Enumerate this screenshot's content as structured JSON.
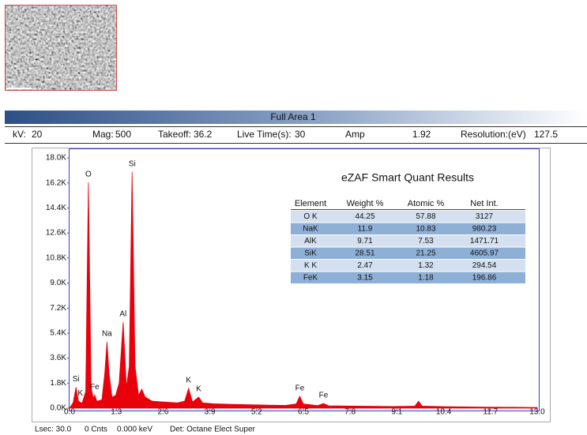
{
  "header": {
    "title": "Full Area 1",
    "info": [
      [
        "kV:",
        "20"
      ],
      [
        "Mag:",
        "500"
      ],
      [
        "Takeoff:",
        "36.2"
      ],
      [
        "Live Time(s):",
        "30"
      ],
      [
        "Amp",
        "1.92"
      ],
      [
        "Resolution:(eV)",
        "127.5"
      ]
    ]
  },
  "table": {
    "title": "eZAF Smart Quant Results",
    "columns": [
      "Element",
      "Weight %",
      "Atomic %",
      "Net Int."
    ],
    "rows": [
      [
        "O K",
        "44.25",
        "57.88",
        "3127"
      ],
      [
        "NaK",
        "11.9",
        "10.83",
        "980.23"
      ],
      [
        "AlK",
        "9.71",
        "7.53",
        "1471.71"
      ],
      [
        "SiK",
        "28.51",
        "21.25",
        "4605.97"
      ],
      [
        "K K",
        "2.47",
        "1.32",
        "294.54"
      ],
      [
        "FeK",
        "3.15",
        "1.18",
        "196.86"
      ]
    ]
  },
  "footer": [
    "Lsec: 30.0",
    "0 Cnts",
    "0.000 keV",
    "Det: Octane Elect Super"
  ],
  "chart_data": {
    "type": "area",
    "color": "#e8000b",
    "x": [
      0,
      0.1,
      0.18,
      0.25,
      0.35,
      0.45,
      0.525,
      0.6,
      0.66,
      0.7,
      0.76,
      0.9,
      0.98,
      1.04,
      1.1,
      1.18,
      1.28,
      1.38,
      1.49,
      1.58,
      1.66,
      1.74,
      1.82,
      1.92,
      2.01,
      2.1,
      2.3,
      2.6,
      3.0,
      3.2,
      3.31,
      3.42,
      3.59,
      3.7,
      4.0,
      4.5,
      5.0,
      5.5,
      6.0,
      6.3,
      6.4,
      6.5,
      6.9,
      7.06,
      7.2,
      8.0,
      9.0,
      9.6,
      9.7,
      9.8,
      10.5,
      11.5,
      12.5,
      13.0
    ],
    "values": [
      0,
      400,
      1500,
      500,
      350,
      1200,
      16240,
      1500,
      700,
      950,
      500,
      600,
      2500,
      4770,
      2500,
      800,
      900,
      1800,
      6190,
      1500,
      3000,
      17000,
      3000,
      900,
      1360,
      800,
      500,
      450,
      380,
      500,
      1420,
      450,
      800,
      380,
      320,
      280,
      250,
      220,
      200,
      300,
      850,
      300,
      180,
      340,
      170,
      150,
      120,
      150,
      500,
      150,
      100,
      80,
      60,
      50
    ],
    "annotations": [
      {
        "text": "Si",
        "x": 0.18
      },
      {
        "text": "K",
        "x": 0.3
      },
      {
        "text": "O",
        "x": 0.525
      },
      {
        "text": "Fe",
        "x": 0.7
      },
      {
        "text": "Na",
        "x": 1.04
      },
      {
        "text": "Al",
        "x": 1.49
      },
      {
        "text": "Si",
        "x": 1.74
      },
      {
        "text": "K",
        "x": 3.31
      },
      {
        "text": "K",
        "x": 3.59
      },
      {
        "text": "Fe",
        "x": 6.4
      },
      {
        "text": "Fe",
        "x": 7.06
      }
    ],
    "xlim": [
      0,
      13
    ],
    "xticks": [
      {
        "value": 0,
        "label": "0.0"
      },
      1.3,
      2.6,
      3.9,
      5.2,
      6.5,
      7.8,
      9.1,
      10.4,
      11.7,
      {
        "value": 13,
        "label": "13.0"
      }
    ],
    "ylim": [
      0,
      18000
    ],
    "yticks": [
      {
        "value": 0,
        "label": "0.0K"
      },
      {
        "value": 1800,
        "label": "1.8K"
      },
      {
        "value": 3600,
        "label": "3.6K"
      },
      {
        "value": 5400,
        "label": "5.4K"
      },
      {
        "value": 7200,
        "label": "7.2K"
      },
      {
        "value": 9000,
        "label": "9.0K"
      },
      {
        "value": 10800,
        "label": "10.8K"
      },
      {
        "value": 12600,
        "label": "12.6K"
      },
      {
        "value": 14400,
        "label": "14.4K"
      },
      {
        "value": 16200,
        "label": "16.2K"
      },
      {
        "value": 18000,
        "label": "18.0K"
      }
    ]
  }
}
